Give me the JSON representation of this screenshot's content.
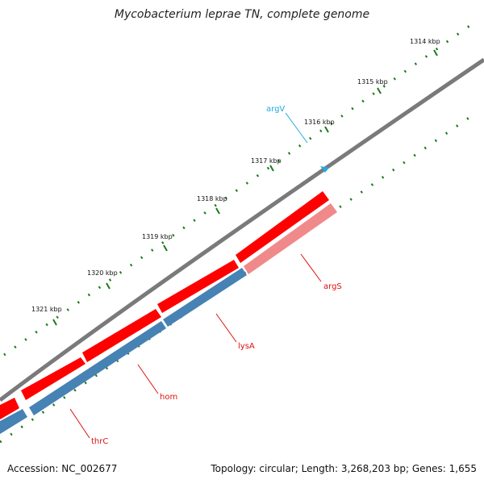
{
  "title": "Mycobacterium leprae TN, complete genome",
  "footer": {
    "accession": "Accession: NC_002677",
    "summary": "Topology: circular; Length: 3,268,203 bp; Genes: 1,655"
  },
  "colors": {
    "backbone": "#7a7a7a",
    "forward_gene": "#ff0000",
    "forward_gene_light": "#f08a8a",
    "reverse_gene": "#4682b4",
    "trna": "#22aadd",
    "ticks": "#1a7a1a",
    "gene_label": "#dd1111",
    "trna_label": "#22aadd"
  },
  "ticks": [
    "1314 kbp",
    "1315 kbp",
    "1316 kbp",
    "1317 kbp",
    "1318 kbp",
    "1319 kbp",
    "1320 kbp",
    "1321 kbp"
  ],
  "genes": [
    {
      "name": "argV",
      "type": "tRNA"
    },
    {
      "name": "argS",
      "type": "CDS",
      "strand": "forward"
    },
    {
      "name": "lysA",
      "type": "CDS",
      "strand": "forward"
    },
    {
      "name": "hom",
      "type": "CDS",
      "strand": "forward"
    },
    {
      "name": "thrC",
      "type": "CDS",
      "strand": "forward"
    }
  ]
}
